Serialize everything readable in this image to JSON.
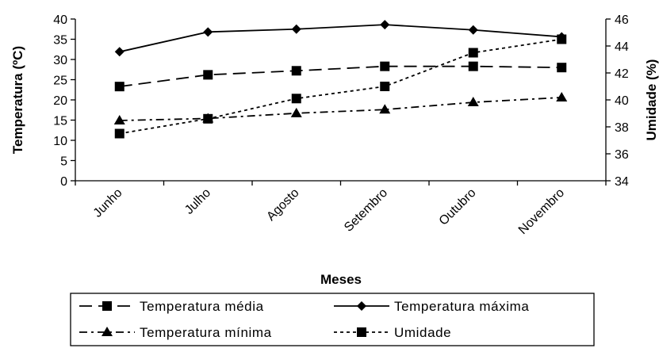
{
  "chart_data": {
    "type": "line",
    "xlabel": "Meses",
    "ylabel": "Temperatura (ºC)",
    "y2label": "Umidade (%)",
    "categories": [
      "Junho",
      "Julho",
      "Agosto",
      "Setembro",
      "Outubro",
      "Novembro"
    ],
    "ylim": [
      0,
      40
    ],
    "yticks": [
      "0",
      "5",
      "10",
      "15",
      "20",
      "25",
      "30",
      "35",
      "40"
    ],
    "y2lim": [
      34,
      46
    ],
    "y2ticks": [
      "34",
      "36",
      "38",
      "40",
      "42",
      "44",
      "46"
    ],
    "grid": false,
    "legend_position": "bottom",
    "series": [
      {
        "name": "Temperatura média",
        "axis": "left",
        "style": "long-dash",
        "marker": "square",
        "values": [
          23.3,
          26.2,
          27.2,
          28.3,
          28.3,
          28.0
        ]
      },
      {
        "name": "Temperatura máxima",
        "axis": "left",
        "style": "solid",
        "marker": "diamond",
        "values": [
          31.9,
          36.8,
          37.5,
          38.6,
          37.3,
          35.6
        ]
      },
      {
        "name": "Temperatura mínima",
        "axis": "left",
        "style": "dash-dot",
        "marker": "triangle",
        "values": [
          14.9,
          15.4,
          16.7,
          17.6,
          19.4,
          20.6
        ]
      },
      {
        "name": "Umidade",
        "axis": "right",
        "style": "dotted",
        "marker": "square",
        "values": [
          37.5,
          38.6,
          40.1,
          41.0,
          43.5,
          44.5
        ]
      }
    ]
  }
}
